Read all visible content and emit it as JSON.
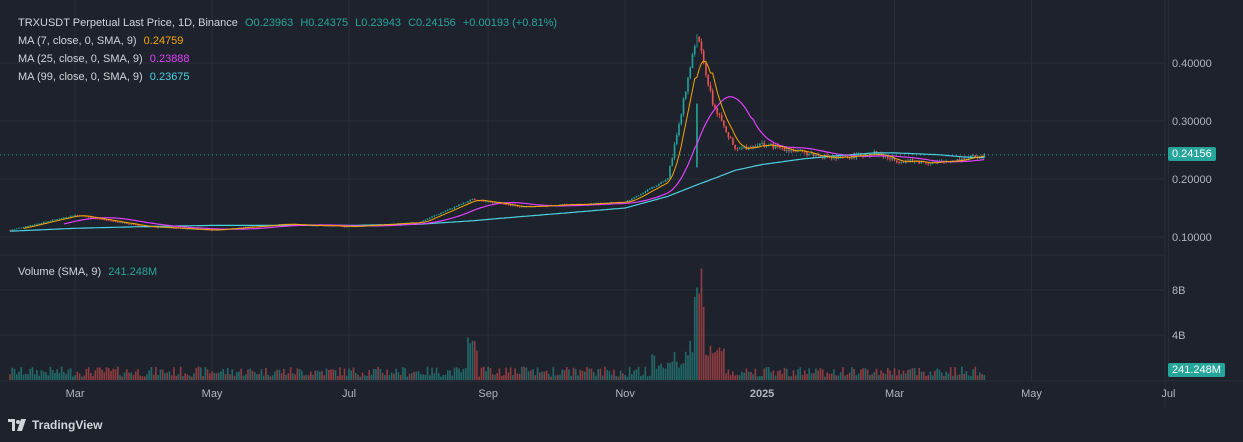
{
  "legend": {
    "symbol": "TRXUSDT Perpetual Last Price, 1D, Binance",
    "open": "O0.23963",
    "high": "H0.24375",
    "low": "L0.23943",
    "close": "C0.24156",
    "change": "+0.00193 (+0.81%)",
    "ma7_label": "MA (7, close, 0, SMA, 9)",
    "ma7_value": "0.24759",
    "ma25_label": "MA (25, close, 0, SMA, 9)",
    "ma25_value": "0.23888",
    "ma99_label": "MA (99, close, 0, SMA, 9)",
    "ma99_value": "0.23675"
  },
  "volume_legend": {
    "label": "Volume (SMA, 9)",
    "value": "241.248M"
  },
  "price_axis": {
    "ticks": [
      "0.40000",
      "0.30000",
      "0.20000",
      "0.10000"
    ],
    "tick_values": [
      0.4,
      0.3,
      0.2,
      0.1
    ],
    "last_price": "0.24156",
    "last_price_value": 0.24156
  },
  "volume_axis": {
    "ticks": [
      "8B",
      "4B"
    ],
    "tick_values": [
      8,
      4
    ],
    "last_volume": "241.248M"
  },
  "time_axis": {
    "labels": [
      "Mar",
      "May",
      "Jul",
      "Sep",
      "Nov",
      "2025",
      "Mar",
      "May",
      "Jul"
    ]
  },
  "branding": {
    "logo_text": "TradingView"
  },
  "colors": {
    "up": "#26a69a",
    "down": "#ef5350",
    "ma7": "#f7a600",
    "ma25": "#e040fb",
    "ma99": "#4dd0e1",
    "last_price_tag": "#26a69a"
  },
  "chart_data": {
    "type": "candlestick",
    "title": "TRXUSDT Perpetual Last Price, 1D, Binance",
    "price_range": [
      0.07,
      0.47
    ],
    "price_series_approx": {
      "dates": [
        "2024-02-01",
        "2024-03-01",
        "2024-04-01",
        "2024-05-01",
        "2024-06-01",
        "2024-07-01",
        "2024-08-01",
        "2024-08-25",
        "2024-09-15",
        "2024-10-01",
        "2024-11-01",
        "2024-11-20",
        "2024-12-03",
        "2024-12-10",
        "2024-12-20",
        "2025-01-01",
        "2025-01-20",
        "2025-02-03",
        "2025-02-20",
        "2025-03-01",
        "2025-03-20",
        "2025-04-01",
        "2025-04-10"
      ],
      "close": [
        0.112,
        0.138,
        0.118,
        0.112,
        0.122,
        0.118,
        0.125,
        0.165,
        0.152,
        0.155,
        0.16,
        0.2,
        0.45,
        0.33,
        0.25,
        0.26,
        0.245,
        0.235,
        0.245,
        0.232,
        0.228,
        0.235,
        0.2416
      ]
    },
    "ma99_approx": [
      0.11,
      0.115,
      0.118,
      0.12,
      0.12,
      0.12,
      0.122,
      0.128,
      0.135,
      0.14,
      0.15,
      0.17,
      0.19,
      0.2,
      0.215,
      0.225,
      0.235,
      0.24,
      0.245,
      0.245,
      0.242,
      0.238,
      0.2368
    ]
  }
}
